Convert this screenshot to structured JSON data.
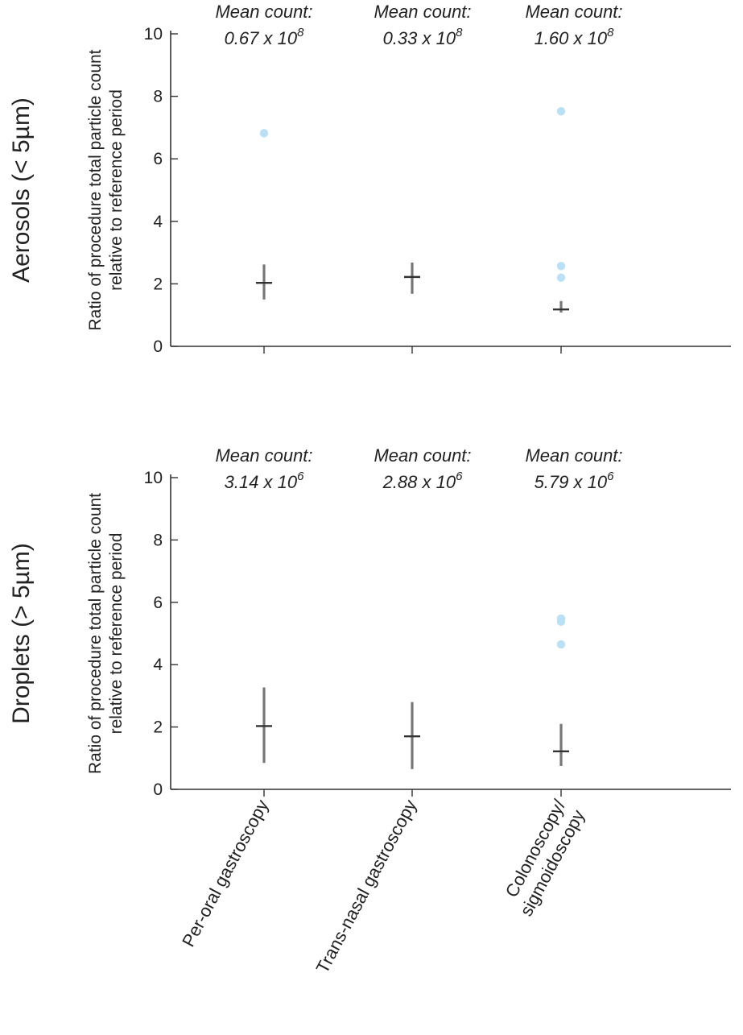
{
  "chart_data": [
    {
      "type": "scatter",
      "row_label": "Aerosols (< 5µm)",
      "ylabel_lines": [
        "Ratio of procedure total particle count",
        "relative to reference period"
      ],
      "ylim": [
        0,
        10
      ],
      "yticks": [
        0,
        2,
        4,
        6,
        8,
        10
      ],
      "categories": [
        "Per-oral gastroscopy",
        "Trans-nasal gastroscopy",
        "Colonoscopy/ sigmoidoscopy"
      ],
      "mean_counts": [
        {
          "prefix": "Mean count:",
          "value": "0.67 x 10",
          "exponent": "8"
        },
        {
          "prefix": "Mean count:",
          "value": "0.33 x 10",
          "exponent": "8"
        },
        {
          "prefix": "Mean count:",
          "value": "1.60 x 10",
          "exponent": "8"
        }
      ],
      "summary": [
        {
          "category": "Per-oral gastroscopy",
          "center": 2.03,
          "low": 1.5,
          "high": 2.62
        },
        {
          "category": "Trans-nasal gastroscopy",
          "center": 2.22,
          "low": 1.68,
          "high": 2.68
        },
        {
          "category": "Colonoscopy/ sigmoidoscopy",
          "center": 1.18,
          "low": 1.08,
          "high": 1.45
        }
      ],
      "outliers": [
        {
          "category": "Per-oral gastroscopy",
          "y": 6.82
        },
        {
          "category": "Colonoscopy/ sigmoidoscopy",
          "y": 7.52
        },
        {
          "category": "Colonoscopy/ sigmoidoscopy",
          "y": 2.57
        },
        {
          "category": "Colonoscopy/ sigmoidoscopy",
          "y": 2.2
        }
      ],
      "colors": {
        "point": "#b9e0f5",
        "summary": "#333333",
        "errorbar": "#777777"
      },
      "grid": false
    },
    {
      "type": "scatter",
      "row_label": "Droplets (> 5µm)",
      "ylabel_lines": [
        "Ratio of procedure total particle count",
        "relative to reference period"
      ],
      "ylim": [
        0,
        10
      ],
      "yticks": [
        0,
        2,
        4,
        6,
        8,
        10
      ],
      "categories": [
        "Per-oral gastroscopy",
        "Trans-nasal gastroscopy",
        "Colonoscopy/ sigmoidoscopy"
      ],
      "category_labels": [
        [
          "Per-oral gastroscopy"
        ],
        [
          "Trans-nasal gastroscopy"
        ],
        [
          "Colonoscopy/",
          "sigmoidoscopy"
        ]
      ],
      "mean_counts": [
        {
          "prefix": "Mean count:",
          "value": "3.14 x 10",
          "exponent": "6"
        },
        {
          "prefix": "Mean count:",
          "value": "2.88 x 10",
          "exponent": "6"
        },
        {
          "prefix": "Mean count:",
          "value": "5.79 x 10",
          "exponent": "6"
        }
      ],
      "summary": [
        {
          "category": "Per-oral gastroscopy",
          "center": 2.03,
          "low": 0.85,
          "high": 3.27
        },
        {
          "category": "Trans-nasal gastroscopy",
          "center": 1.7,
          "low": 0.65,
          "high": 2.8
        },
        {
          "category": "Colonoscopy/ sigmoidoscopy",
          "center": 1.22,
          "low": 0.75,
          "high": 2.1
        }
      ],
      "outliers": [
        {
          "category": "Colonoscopy/ sigmoidoscopy",
          "y": 5.48
        },
        {
          "category": "Colonoscopy/ sigmoidoscopy",
          "y": 5.38
        },
        {
          "category": "Colonoscopy/ sigmoidoscopy",
          "y": 4.65
        }
      ],
      "colors": {
        "point": "#b9e0f5",
        "summary": "#333333",
        "errorbar": "#777777"
      },
      "grid": false
    }
  ]
}
